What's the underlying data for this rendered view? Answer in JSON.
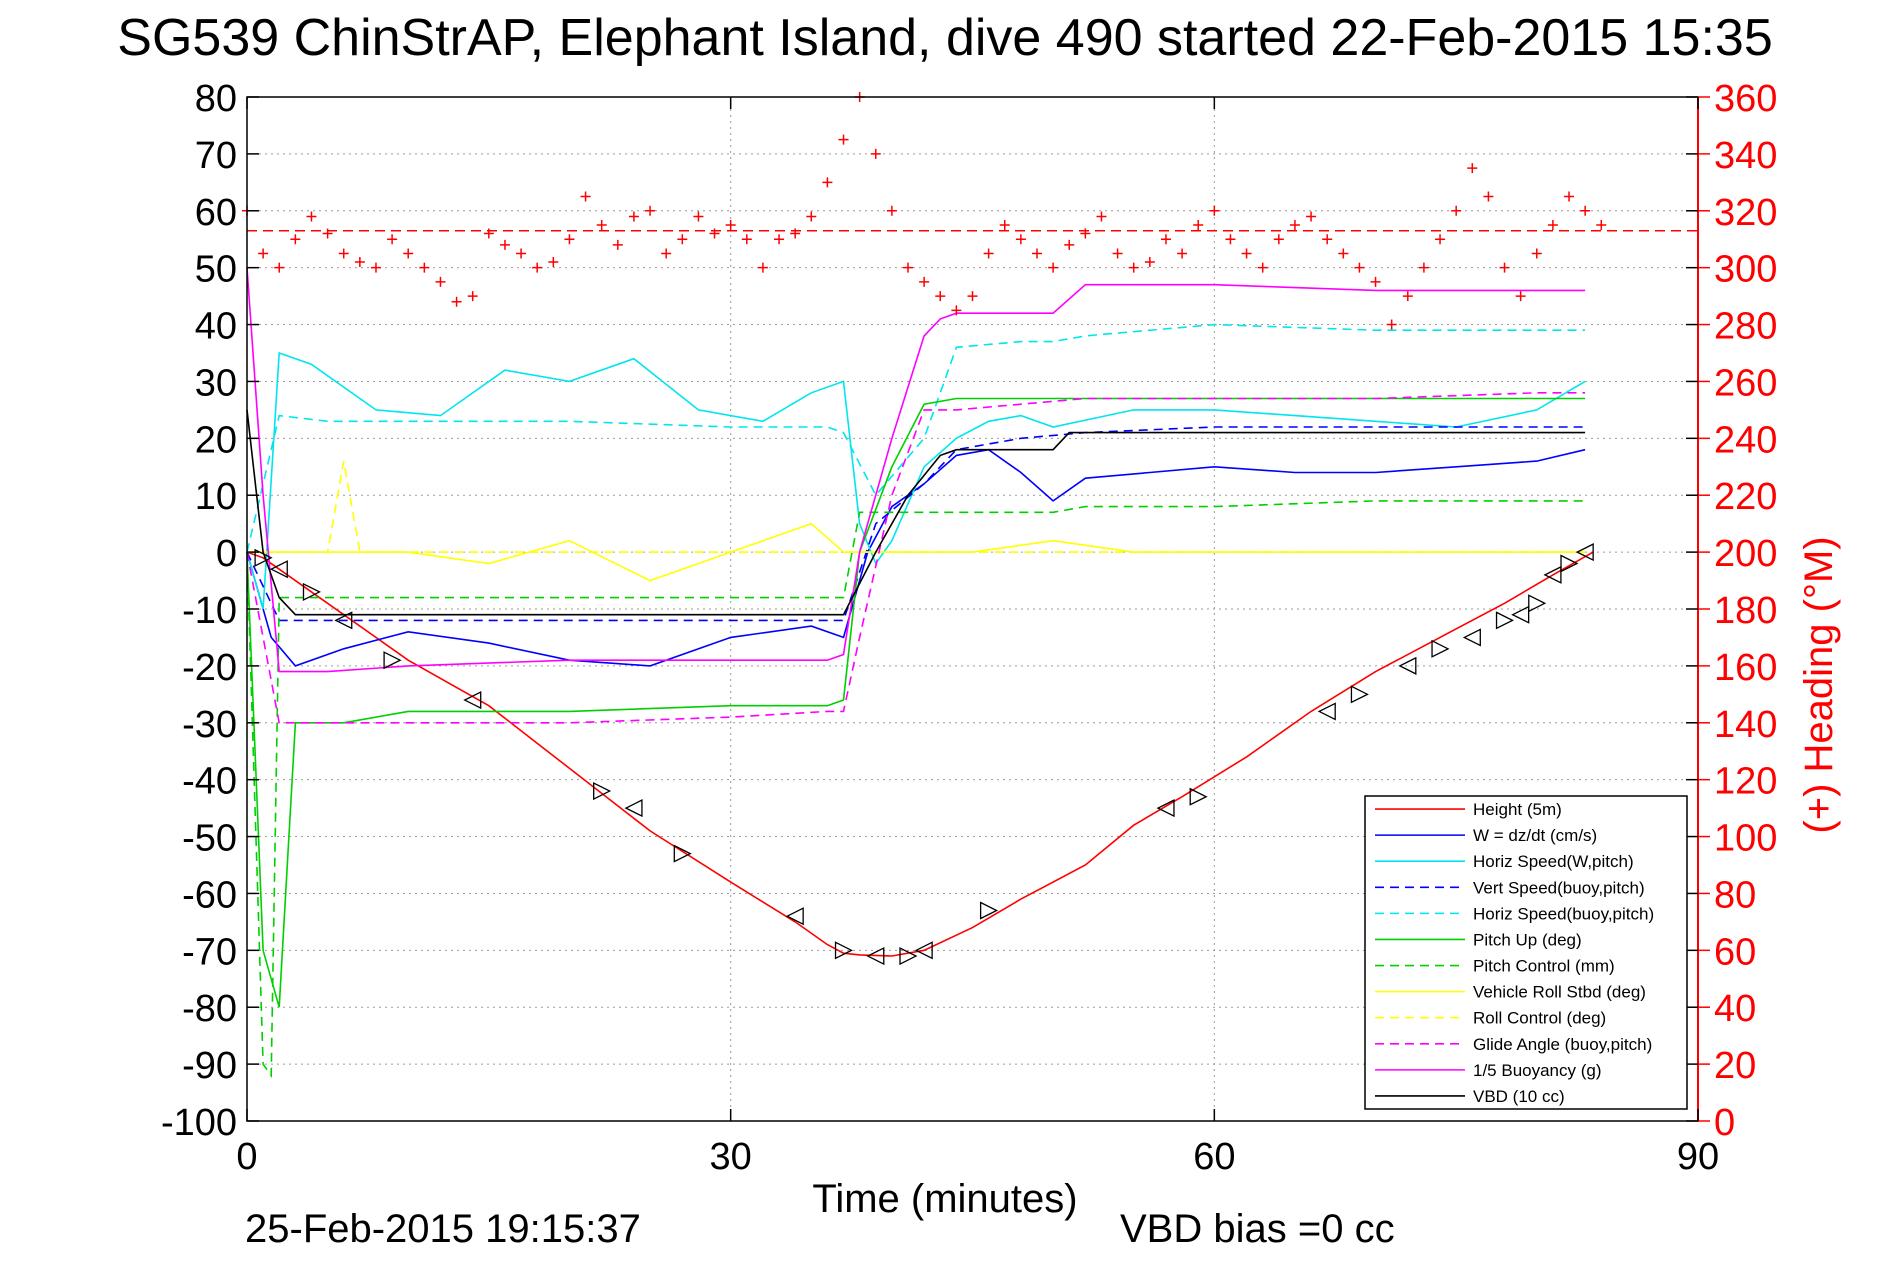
{
  "footer": {
    "timestamp": "25-Feb-2015 19:15:37",
    "vbd_bias": "VBD bias =0 cc"
  },
  "chart_data": {
    "type": "line",
    "title": "SG539 ChinStrAP, Elephant Island, dive 490 started 22-Feb-2015 15:35",
    "xlabel": "Time (minutes)",
    "ylabel_right": "(+) Heading (°M)",
    "xlim": [
      0,
      90
    ],
    "ylim": [
      -100,
      80
    ],
    "ylim_right": [
      0,
      360
    ],
    "xticks": [
      0,
      30,
      60,
      90
    ],
    "yticks": [
      80,
      70,
      60,
      50,
      40,
      30,
      20,
      10,
      0,
      -10,
      -20,
      -30,
      -40,
      -50,
      -60,
      -70,
      -80,
      -90,
      -100
    ],
    "yticks_right": [
      360,
      340,
      320,
      300,
      280,
      260,
      240,
      220,
      200,
      180,
      160,
      140,
      120,
      100,
      80,
      60,
      40,
      20,
      0
    ],
    "grid": true,
    "legend_position": "bottom-right",
    "series": [
      {
        "name": "Height (5m)",
        "color": "#ff0000",
        "style": "solid",
        "x": [
          0,
          1,
          2,
          5,
          10,
          15,
          20,
          25,
          30,
          34,
          36,
          37,
          38,
          40,
          42,
          45,
          48,
          52,
          55,
          58,
          62,
          66,
          70,
          74,
          78,
          81,
          83.5
        ],
        "y": [
          0,
          -1,
          -3,
          -9,
          -19,
          -27,
          -38,
          -49,
          -58,
          -65,
          -69,
          -70.5,
          -70.8,
          -71,
          -70,
          -66,
          -61,
          -55,
          -48,
          -43,
          -36,
          -28,
          -21,
          -15,
          -9,
          -4,
          0
        ]
      },
      {
        "name": "W = dz/dt (cm/s)",
        "color": "#0000ff",
        "style": "solid",
        "x": [
          0,
          1.5,
          3,
          6,
          10,
          15,
          20,
          25,
          30,
          35,
          37,
          38.5,
          40,
          42,
          44,
          46,
          48,
          50,
          52,
          56,
          60,
          65,
          70,
          75,
          80,
          83
        ],
        "y": [
          0,
          -15,
          -20,
          -17,
          -14,
          -16,
          -19,
          -20,
          -15,
          -13,
          -15,
          0,
          8,
          12,
          17,
          18,
          14,
          9,
          13,
          14,
          15,
          14,
          14,
          15,
          16,
          18
        ]
      },
      {
        "name": "Horiz Speed(W,pitch)",
        "color": "#00e5ee",
        "style": "solid",
        "x": [
          0,
          1,
          2,
          4,
          8,
          12,
          16,
          20,
          24,
          28,
          32,
          35,
          37,
          38,
          39,
          40,
          42,
          44,
          46,
          48,
          50,
          55,
          60,
          65,
          70,
          75,
          80,
          83
        ],
        "y": [
          0,
          -10,
          35,
          33,
          25,
          24,
          32,
          30,
          34,
          25,
          23,
          28,
          30,
          5,
          -2,
          2,
          15,
          20,
          23,
          24,
          22,
          25,
          25,
          24,
          23,
          22,
          25,
          30
        ]
      },
      {
        "name": "Vert Speed(buoy,pitch)",
        "color": "#0000ff",
        "style": "dashed",
        "x": [
          0,
          2,
          5,
          10,
          20,
          30,
          36,
          37,
          39,
          42,
          44,
          48,
          52,
          60,
          70,
          80,
          83
        ],
        "y": [
          0,
          -12,
          -12,
          -12,
          -12,
          -12,
          -12,
          -12,
          5,
          12,
          18,
          20,
          21,
          22,
          22,
          22,
          22
        ]
      },
      {
        "name": "Horiz Speed(buoy,pitch)",
        "color": "#00e5ee",
        "style": "dashed",
        "x": [
          0,
          2,
          5,
          10,
          20,
          30,
          36,
          37,
          39,
          42,
          44,
          48,
          50,
          52,
          60,
          70,
          80,
          83
        ],
        "y": [
          0,
          24,
          23,
          23,
          23,
          22,
          22,
          21,
          10,
          20,
          36,
          37,
          37,
          38,
          40,
          39,
          39,
          39
        ]
      },
      {
        "name": "Pitch Up (deg)",
        "color": "#00d000",
        "style": "solid",
        "x": [
          0,
          1,
          2,
          3,
          6,
          10,
          20,
          30,
          36,
          37,
          38,
          40,
          42,
          44,
          48,
          52,
          60,
          70,
          80,
          83
        ],
        "y": [
          0,
          -70,
          -80,
          -30,
          -30,
          -28,
          -28,
          -27,
          -27,
          -26,
          0,
          15,
          26,
          27,
          27,
          27,
          27,
          27,
          27,
          27
        ]
      },
      {
        "name": "Pitch Control (mm)",
        "color": "#00d000",
        "style": "dashed",
        "x": [
          0,
          1,
          1.5,
          2,
          3,
          10,
          20,
          30,
          36,
          37,
          38,
          42,
          44,
          48,
          50,
          52,
          60,
          70,
          80,
          83
        ],
        "y": [
          0,
          -90,
          -92,
          -8,
          -8,
          -8,
          -8,
          -8,
          -8,
          -8,
          7,
          7,
          7,
          7,
          7,
          8,
          8,
          9,
          9,
          9
        ]
      },
      {
        "name": "Vehicle Roll Stbd (deg)",
        "color": "#ffff00",
        "style": "solid",
        "x": [
          0,
          5,
          10,
          15,
          20,
          25,
          30,
          35,
          37,
          40,
          45,
          50,
          55,
          60,
          65,
          70,
          75,
          80,
          83
        ],
        "y": [
          0,
          0,
          0,
          -2,
          2,
          -5,
          0,
          5,
          0,
          0,
          0,
          2,
          0,
          0,
          0,
          0,
          0,
          0,
          0
        ]
      },
      {
        "name": "Roll Control (deg)",
        "color": "#ffff00",
        "style": "dashed",
        "x": [
          0,
          5,
          6,
          7,
          10,
          20,
          30,
          40,
          50,
          60,
          70,
          80,
          83
        ],
        "y": [
          0,
          0,
          16,
          0,
          0,
          0,
          0,
          0,
          0,
          0,
          0,
          0,
          0
        ]
      },
      {
        "name": "Glide Angle (buoy,pitch)",
        "color": "#ff00ff",
        "style": "dashed",
        "x": [
          0,
          2,
          5,
          10,
          20,
          30,
          36,
          37,
          38,
          40,
          42,
          44,
          48,
          52,
          60,
          70,
          80,
          83
        ],
        "y": [
          0,
          -30,
          -30,
          -30,
          -30,
          -29,
          -28,
          -28,
          -15,
          10,
          25,
          25,
          26,
          27,
          27,
          27,
          28,
          28
        ]
      },
      {
        "name": "1/5 Buoyancy (g)",
        "color": "#ff00ff",
        "style": "solid",
        "x": [
          0,
          1,
          2,
          5,
          10,
          20,
          30,
          36,
          37,
          38,
          40,
          42,
          43,
          44,
          48,
          50,
          52,
          60,
          70,
          80,
          83
        ],
        "y": [
          50,
          10,
          -21,
          -21,
          -20,
          -19,
          -19,
          -19,
          -18,
          0,
          20,
          38,
          41,
          42,
          42,
          42,
          47,
          47,
          46,
          46,
          46
        ]
      },
      {
        "name": "VBD (10 cc)",
        "color": "#000000",
        "style": "solid",
        "x": [
          0,
          1,
          2,
          3,
          5,
          10,
          20,
          30,
          36,
          37,
          39,
          41,
          43,
          44,
          48,
          50,
          51,
          60,
          70,
          80,
          83
        ],
        "y": [
          25,
          0,
          -8,
          -11,
          -11,
          -11,
          -11,
          -11,
          -11,
          -11,
          0,
          10,
          17,
          18,
          18,
          18,
          21,
          21,
          21,
          21,
          21
        ]
      }
    ],
    "heading_series": {
      "name": "(+) Heading (°M)",
      "color": "#ff0000",
      "marker": "+",
      "mean_heading": 313,
      "x": [
        0,
        1,
        2,
        3,
        4,
        5,
        6,
        7,
        8,
        9,
        10,
        11,
        12,
        13,
        14,
        15,
        16,
        17,
        18,
        19,
        20,
        21,
        22,
        23,
        24,
        25,
        26,
        27,
        28,
        29,
        30,
        31,
        32,
        33,
        34,
        35,
        36,
        37,
        38,
        39,
        40,
        41,
        42,
        43,
        44,
        45,
        46,
        47,
        48,
        49,
        50,
        51,
        52,
        53,
        54,
        55,
        56,
        57,
        58,
        59,
        60,
        61,
        62,
        63,
        64,
        65,
        66,
        67,
        68,
        69,
        70,
        71,
        72,
        73,
        74,
        75,
        76,
        77,
        78,
        79,
        80,
        81,
        82,
        83,
        84
      ],
      "y": [
        320,
        305,
        300,
        310,
        318,
        312,
        305,
        302,
        300,
        310,
        305,
        300,
        295,
        288,
        290,
        312,
        308,
        305,
        300,
        302,
        310,
        325,
        315,
        308,
        318,
        320,
        305,
        310,
        318,
        312,
        315,
        310,
        300,
        310,
        312,
        318,
        330,
        345,
        360,
        340,
        320,
        300,
        295,
        290,
        285,
        290,
        305,
        315,
        310,
        305,
        300,
        308,
        312,
        318,
        305,
        300,
        302,
        310,
        305,
        315,
        320,
        310,
        305,
        300,
        310,
        315,
        318,
        310,
        305,
        300,
        295,
        280,
        290,
        300,
        310,
        320,
        335,
        325,
        300,
        290,
        305,
        315,
        325,
        320,
        315
      ]
    },
    "dive_markers": {
      "x": [
        1,
        2,
        4,
        6,
        9,
        14,
        22,
        24,
        27,
        34,
        37,
        39,
        41,
        42,
        46,
        57,
        59,
        67,
        69,
        72,
        74,
        76,
        78,
        79,
        80,
        81,
        82,
        83
      ],
      "y": [
        -1,
        -3,
        -7,
        -12,
        -19,
        -26,
        -42,
        -45,
        -53,
        -64,
        -70,
        -71,
        -71,
        -70,
        -63,
        -45,
        -43,
        -28,
        -25,
        -20,
        -17,
        -15,
        -12,
        -11,
        -9,
        -4,
        -2,
        0
      ]
    }
  }
}
